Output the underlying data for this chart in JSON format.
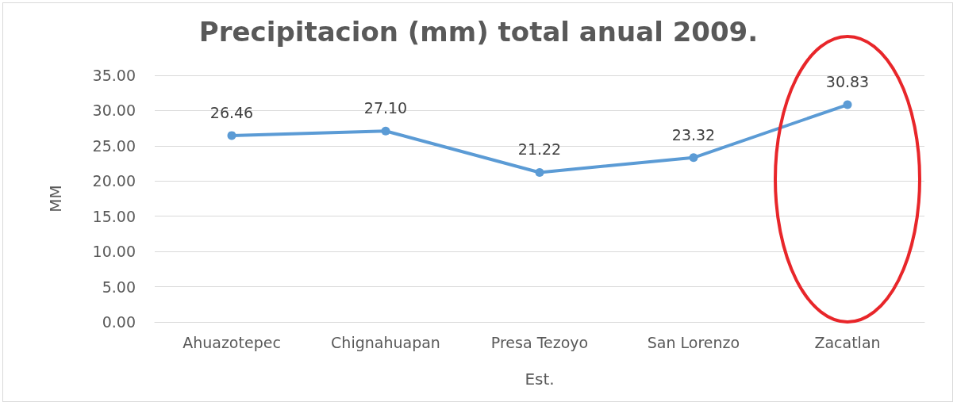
{
  "chart_data": {
    "type": "line",
    "title": "Precipitacion (mm) total anual 2009.",
    "xlabel": "Est.",
    "ylabel": "MM",
    "categories": [
      "Ahuazotepec",
      "Chignahuapan",
      "Presa Tezoyo",
      "San Lorenzo",
      "Zacatlan"
    ],
    "series": [
      {
        "color": "#5b9bd5",
        "values": [
          26.46,
          27.1,
          21.22,
          23.32,
          30.83
        ],
        "value_labels": [
          "26.46",
          "27.10",
          "21.22",
          "23.32",
          "30.83"
        ]
      }
    ],
    "ylim": [
      0,
      35
    ],
    "yticks": [
      {
        "value": 0,
        "label": "0.00"
      },
      {
        "value": 5,
        "label": "5.00"
      },
      {
        "value": 10,
        "label": "10.00"
      },
      {
        "value": 15,
        "label": "15.00"
      },
      {
        "value": 20,
        "label": "20.00"
      },
      {
        "value": 25,
        "label": "25.00"
      },
      {
        "value": 30,
        "label": "30.00"
      },
      {
        "value": 35,
        "label": "35.00"
      }
    ],
    "grid": "y",
    "marker": "circle",
    "line_style": "solid"
  }
}
